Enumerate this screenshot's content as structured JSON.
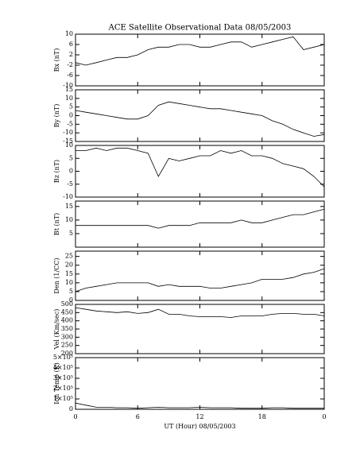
{
  "chart_data": [
    {
      "type": "line",
      "title": "ACE Satellite Observational Data   08/05/2003",
      "ylabel": "Bx (nT)",
      "x": [
        0,
        1,
        2,
        3,
        4,
        5,
        6,
        7,
        8,
        9,
        10,
        11,
        12,
        13,
        14,
        15,
        16,
        17,
        18,
        19,
        20,
        21,
        22,
        23,
        24
      ],
      "values": [
        -1,
        -2,
        -1,
        0,
        1,
        1,
        2,
        4,
        5,
        5,
        6,
        6,
        5,
        5,
        6,
        7,
        7,
        5,
        6,
        7,
        8,
        9,
        4,
        5,
        6
      ],
      "ylim": [
        -10,
        10
      ],
      "yticks": [
        -10,
        -6,
        -2,
        2,
        6,
        10
      ],
      "xlim": [
        0,
        24
      ],
      "color": "#000000"
    },
    {
      "type": "line",
      "ylabel": "By (nT)",
      "x": [
        0,
        1,
        2,
        3,
        4,
        5,
        6,
        7,
        8,
        9,
        10,
        11,
        12,
        13,
        14,
        15,
        16,
        17,
        18,
        19,
        20,
        21,
        22,
        23,
        24
      ],
      "values": [
        3,
        2,
        1,
        0,
        -1,
        -2,
        -2,
        0,
        6,
        8,
        7,
        6,
        5,
        4,
        4,
        3,
        2,
        1,
        0,
        -3,
        -5,
        -8,
        -10,
        -12,
        -11
      ],
      "ylim": [
        -15,
        15
      ],
      "yticks": [
        -15,
        -10,
        -5,
        0,
        5,
        10,
        15
      ],
      "xlim": [
        0,
        24
      ],
      "color": "#000000"
    },
    {
      "type": "line",
      "ylabel": "Bz (nT)",
      "x": [
        0,
        1,
        2,
        3,
        4,
        5,
        6,
        7,
        8,
        9,
        10,
        11,
        12,
        13,
        14,
        15,
        16,
        17,
        18,
        19,
        20,
        21,
        22,
        23,
        24
      ],
      "values": [
        8,
        8,
        9,
        8,
        9,
        9,
        8,
        7,
        -2,
        5,
        4,
        5,
        6,
        6,
        8,
        7,
        8,
        6,
        6,
        5,
        3,
        2,
        1,
        -2,
        -6
      ],
      "ylim": [
        -10,
        10
      ],
      "yticks": [
        -10,
        -5,
        0,
        5,
        10
      ],
      "xlim": [
        0,
        24
      ],
      "color": "#000000"
    },
    {
      "type": "line",
      "ylabel": "Bt (nT)",
      "x": [
        0,
        1,
        2,
        3,
        4,
        5,
        6,
        7,
        8,
        9,
        10,
        11,
        12,
        13,
        14,
        15,
        16,
        17,
        18,
        19,
        20,
        21,
        22,
        23,
        24
      ],
      "values": [
        8,
        8,
        8,
        8,
        8,
        8,
        8,
        8,
        7,
        8,
        8,
        8,
        9,
        9,
        9,
        9,
        10,
        9,
        9,
        10,
        11,
        12,
        12,
        13,
        14
      ],
      "ylim": [
        0,
        17
      ],
      "yticks": [
        5,
        10,
        15
      ],
      "xlim": [
        0,
        24
      ],
      "color": "#000000"
    },
    {
      "type": "line",
      "ylabel": "Den (1/CC)",
      "x": [
        0,
        1,
        2,
        3,
        4,
        5,
        6,
        7,
        8,
        9,
        10,
        11,
        12,
        13,
        14,
        15,
        16,
        17,
        18,
        19,
        20,
        21,
        22,
        23,
        24
      ],
      "values": [
        5,
        7,
        8,
        9,
        10,
        10,
        10,
        10,
        8,
        9,
        8,
        8,
        8,
        7,
        7,
        8,
        9,
        10,
        12,
        12,
        12,
        13,
        15,
        16,
        18
      ],
      "ylim": [
        0,
        28
      ],
      "yticks": [
        0,
        5,
        10,
        15,
        20,
        25
      ],
      "xlim": [
        0,
        24
      ],
      "color": "#000000"
    },
    {
      "type": "line",
      "ylabel": "Vel (Km/sec)",
      "x": [
        0,
        1,
        2,
        3,
        4,
        5,
        6,
        7,
        8,
        9,
        10,
        11,
        12,
        13,
        14,
        15,
        16,
        17,
        18,
        19,
        20,
        21,
        22,
        23,
        24
      ],
      "values": [
        480,
        470,
        460,
        455,
        450,
        455,
        445,
        450,
        470,
        440,
        440,
        430,
        425,
        425,
        425,
        420,
        430,
        430,
        430,
        440,
        445,
        445,
        440,
        440,
        430
      ],
      "ylim": [
        200,
        500
      ],
      "yticks": [
        200,
        250,
        300,
        350,
        400,
        450,
        500
      ],
      "xlim": [
        0,
        24
      ],
      "color": "#000000"
    },
    {
      "type": "line",
      "ylabel": "Ion Temp (K)",
      "xlabel": "UT (Hour)   08/05/2003",
      "x": [
        0,
        1,
        2,
        3,
        4,
        5,
        6,
        7,
        8,
        9,
        10,
        11,
        12,
        13,
        14,
        15,
        16,
        17,
        18,
        19,
        20,
        21,
        22,
        23,
        24
      ],
      "values": [
        60000,
        40000,
        20000,
        20000,
        15000,
        15000,
        10000,
        15000,
        20000,
        15000,
        15000,
        15000,
        20000,
        15000,
        15000,
        15000,
        10000,
        10000,
        10000,
        15000,
        15000,
        10000,
        10000,
        10000,
        10000
      ],
      "ylim": [
        0,
        500000
      ],
      "yticks": [
        0,
        {
          "value": 100000,
          "label": "1×10⁵"
        },
        {
          "value": 200000,
          "label": "2×10⁵"
        },
        {
          "value": 300000,
          "label": "3×10⁵"
        },
        {
          "value": 400000,
          "label": "4×10⁵"
        },
        {
          "value": 500000,
          "label": "5×10⁵"
        }
      ],
      "xlim": [
        0,
        24
      ],
      "xticks": [
        0,
        6,
        12,
        18,
        {
          "value": 24,
          "label": "0"
        }
      ],
      "color": "#000000"
    }
  ]
}
